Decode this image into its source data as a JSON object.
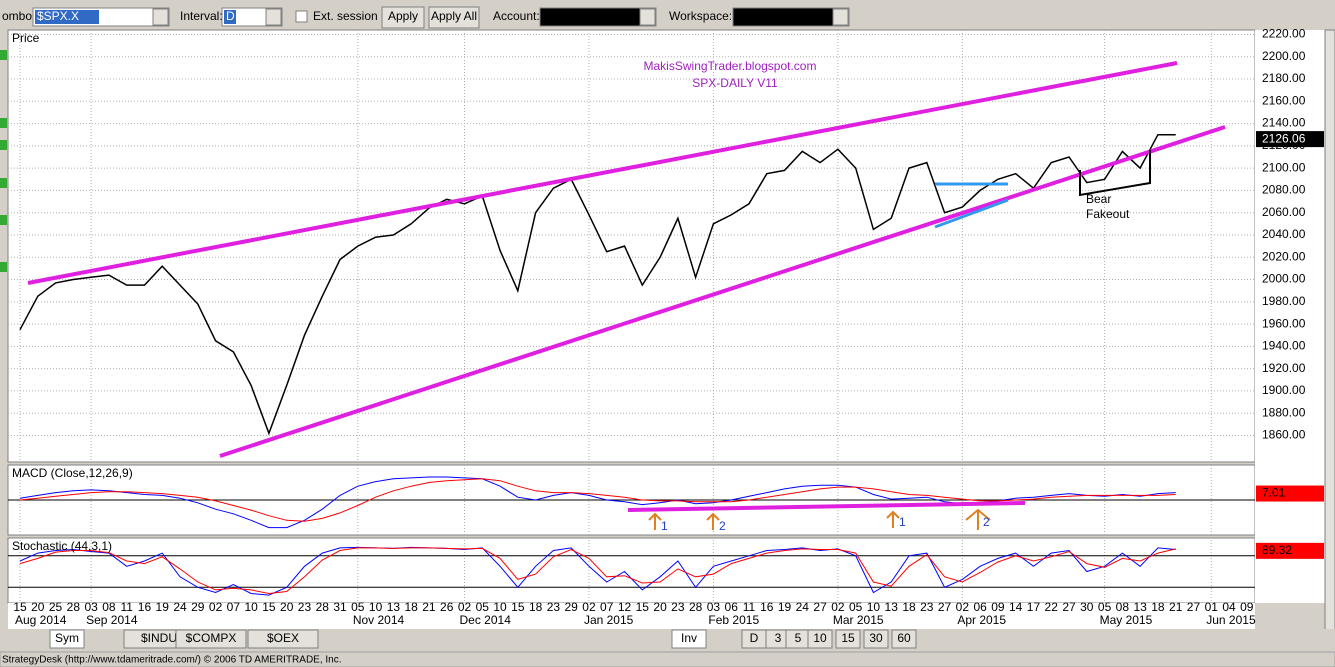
{
  "toolbar": {
    "symbol_label": "ombol:",
    "symbol": "$SPX.X",
    "interval_label": "Interval:",
    "interval": "D",
    "ext_session": "Ext. session",
    "apply": "Apply",
    "apply_all": "Apply All",
    "account_label": "Account:",
    "workspace_label": "Workspace:"
  },
  "chart_data": [
    {
      "type": "line",
      "title": "Price",
      "annotations": [
        "MakisSwingTrader.blogspot.com",
        "SPX-DAILY  V11",
        "Bear",
        "Fakeout"
      ],
      "categories": [
        "15",
        "20",
        "25",
        "28",
        "03",
        "08",
        "11",
        "16",
        "19",
        "24",
        "29",
        "02",
        "07",
        "10",
        "15",
        "20",
        "23",
        "28",
        "31",
        "05",
        "10",
        "13",
        "18",
        "21",
        "26",
        "02",
        "05",
        "10",
        "15",
        "18",
        "23",
        "29",
        "02",
        "07",
        "12",
        "15",
        "20",
        "23",
        "28",
        "03",
        "06",
        "11",
        "16",
        "19",
        "24",
        "27",
        "02",
        "05",
        "10",
        "13",
        "18",
        "23",
        "27",
        "02",
        "06",
        "09",
        "14",
        "17",
        "22",
        "27",
        "30",
        "05",
        "08",
        "13",
        "18",
        "21",
        "27",
        "01",
        "04",
        "09"
      ],
      "x_groups": [
        {
          "label": "Aug 2014",
          "start": 0
        },
        {
          "label": "Sep 2014",
          "start": 4
        },
        {
          "label": "Nov 2014",
          "start": 19
        },
        {
          "label": "Dec 2014",
          "start": 25
        },
        {
          "label": "Jan 2015",
          "start": 32
        },
        {
          "label": "Feb 2015",
          "start": 39
        },
        {
          "label": "Mar 2015",
          "start": 46
        },
        {
          "label": "Apr 2015",
          "start": 53
        },
        {
          "label": "May 2015",
          "start": 61
        },
        {
          "label": "Jun 2015",
          "start": 67
        }
      ],
      "series": [
        {
          "name": "Price",
          "color": "#000000",
          "values": [
            1955,
            1985,
            1997,
            2000,
            2002,
            2004,
            1995,
            1995,
            2012,
            1995,
            1978,
            1945,
            1935,
            1905,
            1862,
            1905,
            1950,
            1985,
            2018,
            2030,
            2038,
            2040,
            2050,
            2064,
            2072,
            2068,
            2075,
            2026,
            1990,
            2060,
            2082,
            2090,
            2058,
            2025,
            2030,
            1995,
            2020,
            2055,
            2002,
            2050,
            2058,
            2068,
            2095,
            2098,
            2115,
            2105,
            2117,
            2100,
            2045,
            2055,
            2100,
            2105,
            2060,
            2065,
            2080,
            2090,
            2095,
            2082,
            2105,
            2110,
            2087,
            2090,
            2115,
            2100,
            2130,
            2130,
            null,
            null,
            null,
            null
          ]
        }
      ],
      "current_value": 2126.06,
      "ylim": [
        1838,
        2224
      ],
      "yticks": [
        {
          "value": 2220,
          "label": "2220.00"
        },
        {
          "value": 2200,
          "label": "2200.00"
        },
        {
          "value": 2180,
          "label": "2180.00"
        },
        {
          "value": 2160,
          "label": "2160.00"
        },
        {
          "value": 2140,
          "label": "2140.00"
        },
        {
          "value": 2120,
          "label": "2120.00"
        },
        {
          "value": 2100,
          "label": "2100.00"
        },
        {
          "value": 2080,
          "label": "2080.00"
        },
        {
          "value": 2060,
          "label": "2060.00"
        },
        {
          "value": 2040,
          "label": "2040.00"
        },
        {
          "value": 2020,
          "label": "2020.00"
        },
        {
          "value": 2000,
          "label": "2000.00"
        },
        {
          "value": 1980,
          "label": "1980.00"
        },
        {
          "value": 1960,
          "label": "1960.00"
        },
        {
          "value": 1940,
          "label": "1940.00"
        },
        {
          "value": 1920,
          "label": "1920.00"
        },
        {
          "value": 1900,
          "label": "1900.00"
        },
        {
          "value": 1880,
          "label": "1880.00"
        },
        {
          "value": 1860,
          "label": "1860.00"
        }
      ],
      "grid": true
    },
    {
      "type": "line",
      "title": "MACD (Close,12,26,9)",
      "annotations": [
        "1",
        "2",
        "1",
        "2"
      ],
      "series": [
        {
          "color": "#0000ff",
          "values": [
            2,
            5,
            8,
            10,
            11,
            10,
            8,
            6,
            5,
            2,
            -3,
            -10,
            -15,
            -22,
            -30,
            -30,
            -22,
            -10,
            5,
            15,
            20,
            23,
            24,
            25,
            25,
            24,
            23,
            15,
            3,
            0,
            5,
            8,
            5,
            0,
            -2,
            -5,
            -3,
            0,
            -4,
            -3,
            0,
            4,
            8,
            12,
            15,
            16,
            16,
            14,
            6,
            1,
            2,
            3,
            -2,
            -4,
            -3,
            -1,
            2,
            3,
            5,
            7,
            5,
            4,
            6,
            4,
            7,
            8,
            null,
            null,
            null,
            null
          ]
        },
        {
          "color": "#ff0000",
          "values": [
            0,
            2,
            4,
            6,
            8,
            9,
            9,
            8,
            7,
            5,
            3,
            -1,
            -6,
            -11,
            -17,
            -22,
            -23,
            -20,
            -14,
            -6,
            3,
            10,
            15,
            19,
            21,
            22,
            23,
            21,
            15,
            10,
            8,
            8,
            7,
            5,
            3,
            0,
            -1,
            -1,
            -2,
            -2,
            -2,
            0,
            3,
            6,
            9,
            12,
            14,
            14,
            12,
            9,
            6,
            5,
            3,
            1,
            -1,
            -1,
            0,
            1,
            3,
            4,
            5,
            5,
            5,
            5,
            5,
            6,
            null,
            null,
            null,
            null
          ]
        }
      ],
      "current_value": 7.01,
      "ylim": [
        -38,
        38
      ],
      "zero": 0
    },
    {
      "type": "line",
      "title": "Stochastic (44,3,1)",
      "series": [
        {
          "color": "#0000ff",
          "values": [
            70,
            85,
            90,
            92,
            88,
            85,
            60,
            70,
            85,
            40,
            20,
            10,
            25,
            8,
            5,
            20,
            60,
            85,
            95,
            96,
            95,
            94,
            96,
            95,
            94,
            92,
            95,
            60,
            20,
            60,
            90,
            95,
            60,
            30,
            50,
            15,
            40,
            70,
            20,
            60,
            70,
            80,
            90,
            92,
            95,
            90,
            93,
            80,
            10,
            30,
            80,
            85,
            20,
            35,
            60,
            75,
            85,
            60,
            85,
            90,
            50,
            60,
            85,
            60,
            95,
            92,
            null,
            null,
            null,
            null
          ]
        },
        {
          "color": "#ff0000",
          "values": [
            65,
            75,
            87,
            90,
            90,
            86,
            70,
            65,
            78,
            55,
            30,
            15,
            18,
            15,
            8,
            12,
            40,
            72,
            90,
            95,
            95,
            94,
            95,
            95,
            94,
            93,
            94,
            75,
            35,
            45,
            78,
            92,
            75,
            40,
            42,
            28,
            30,
            55,
            40,
            45,
            65,
            75,
            85,
            90,
            93,
            92,
            92,
            85,
            30,
            22,
            60,
            82,
            40,
            30,
            48,
            68,
            80,
            70,
            78,
            88,
            65,
            58,
            75,
            70,
            85,
            93,
            null,
            null,
            null,
            null
          ]
        }
      ],
      "current_value": 89.32,
      "ylim": [
        -10,
        110
      ],
      "levels": [
        80,
        20
      ]
    }
  ],
  "tabs": [
    "Sym",
    "$INDU",
    "$COMPX",
    "$OEX",
    "Inv",
    "D",
    "3",
    "5",
    "10",
    "15",
    "30",
    "60"
  ],
  "status": "StrategyDesk (http://www.tdameritrade.com/) © 2006 TD AMERITRADE, Inc."
}
